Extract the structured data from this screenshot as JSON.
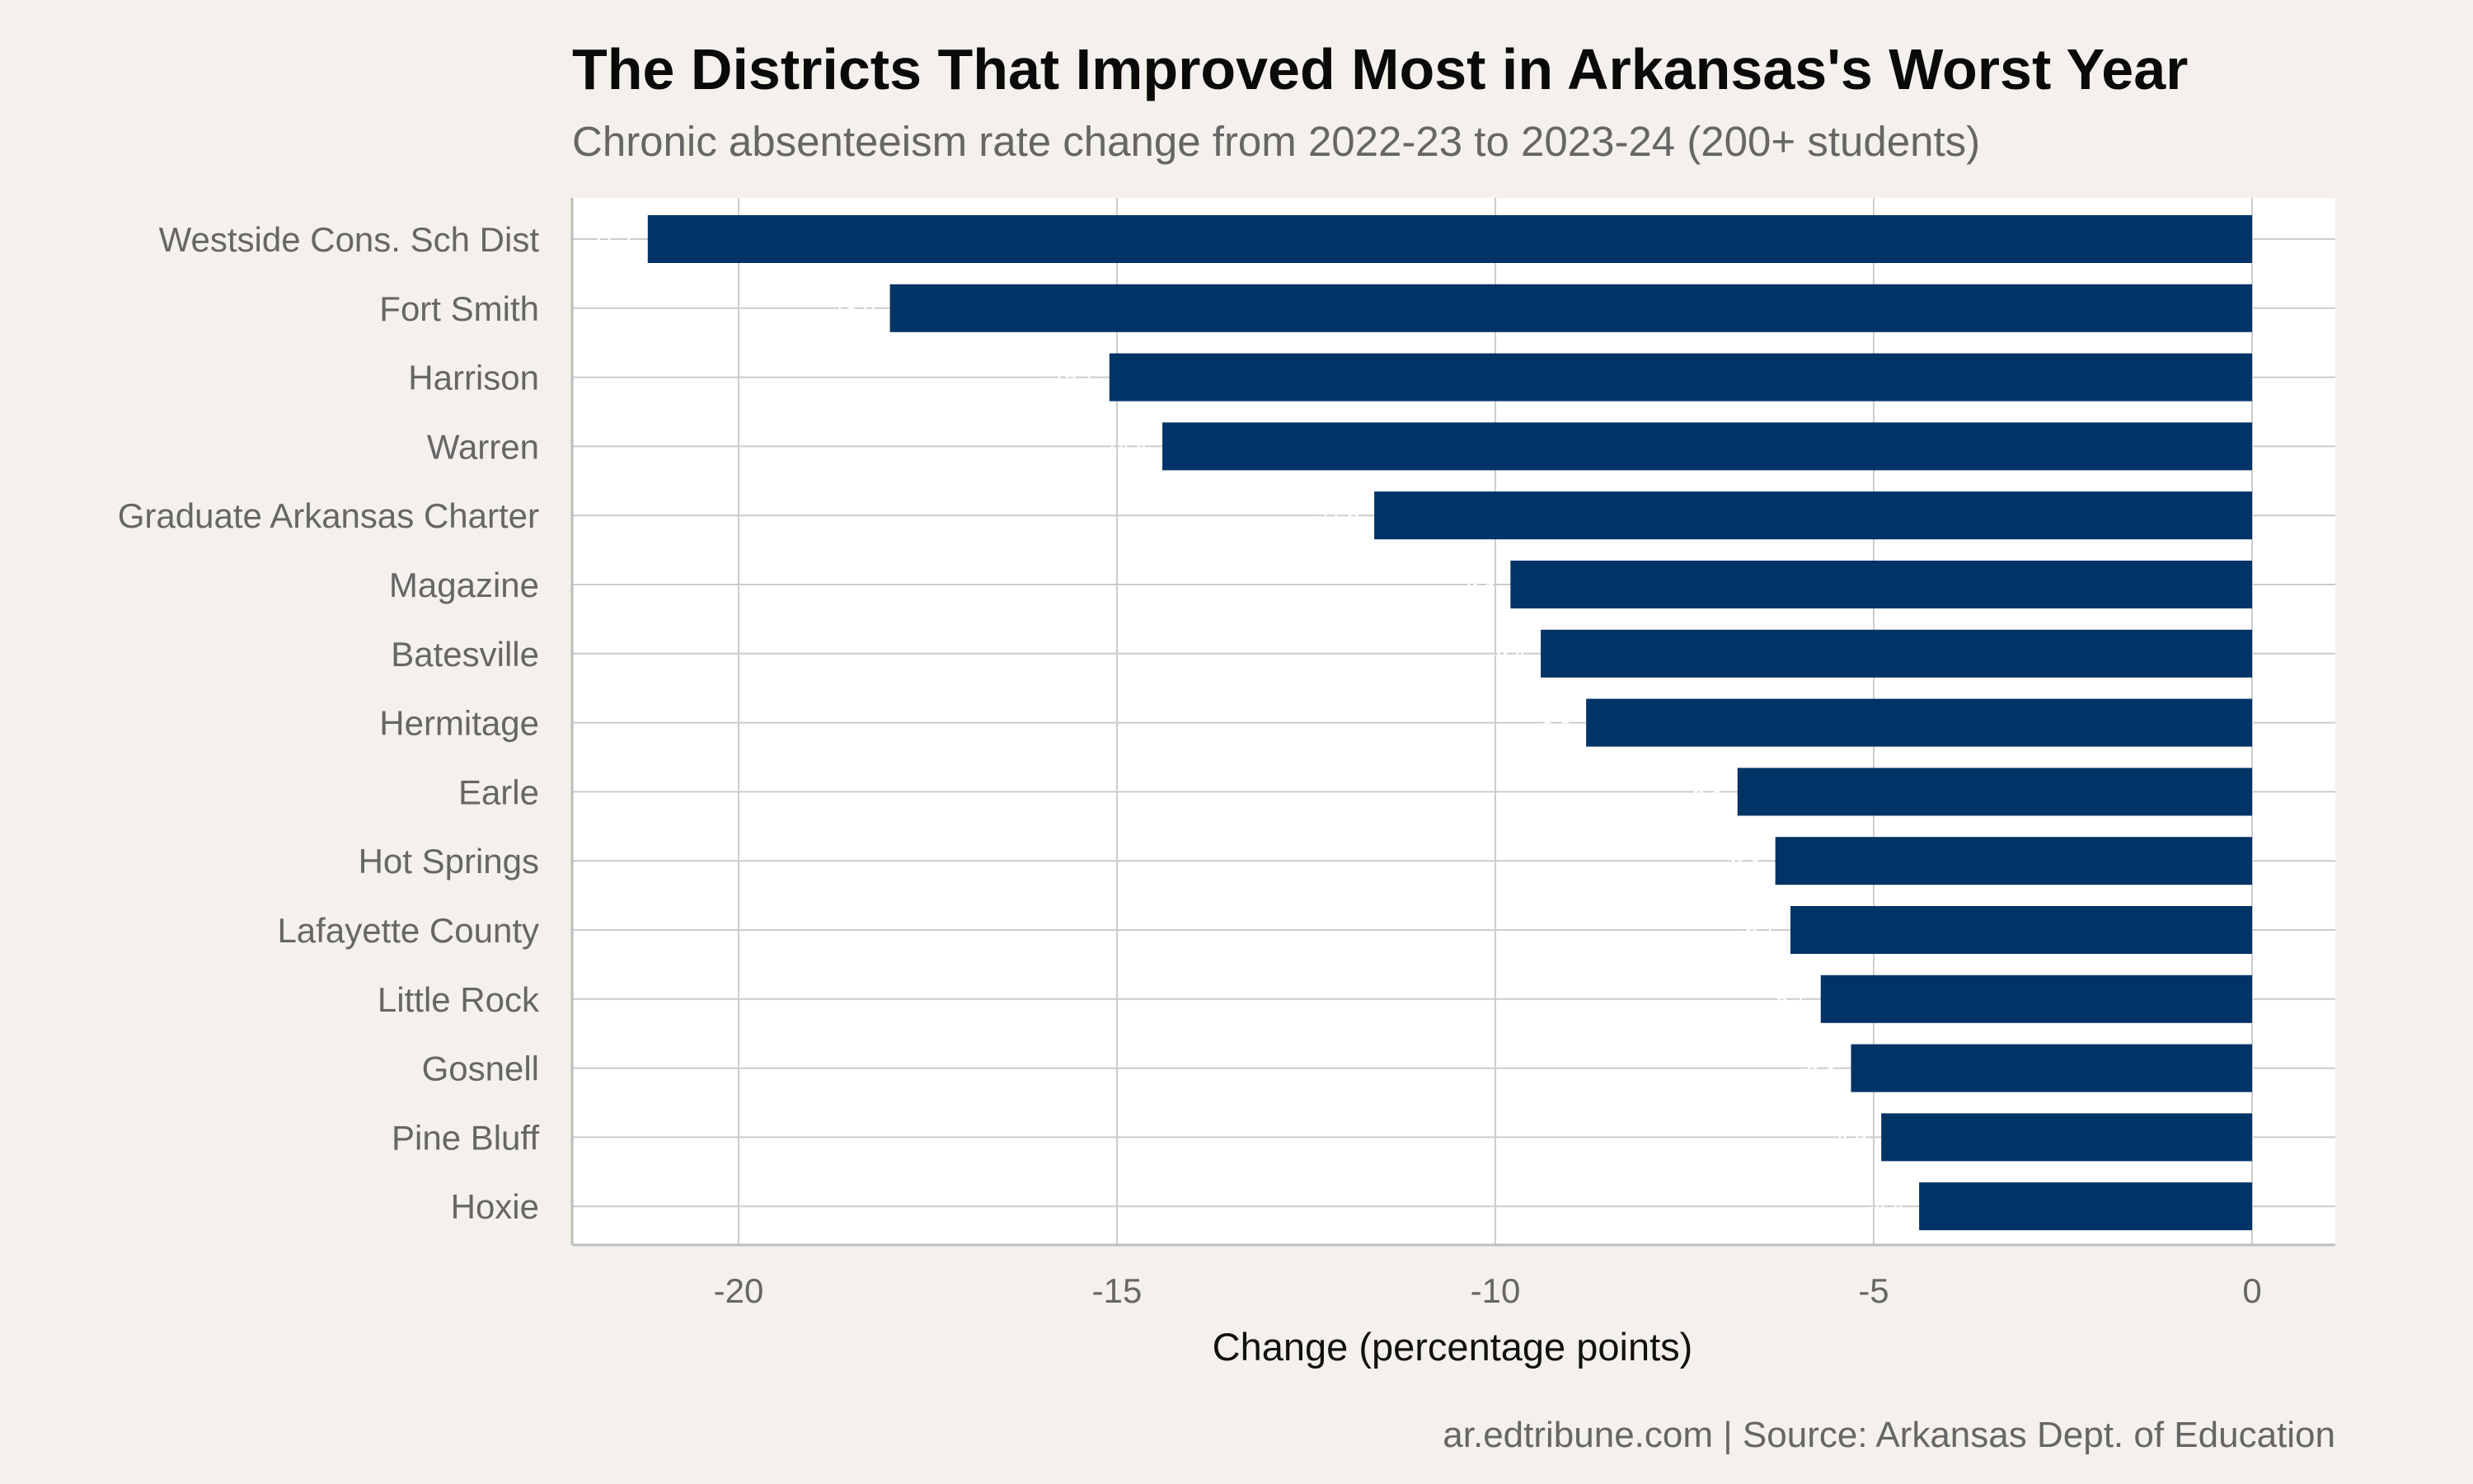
{
  "chart_data": {
    "type": "bar",
    "orientation": "horizontal",
    "title": "The Districts That Improved Most in Arkansas's Worst Year",
    "subtitle": "Chronic absenteeism rate change from 2022-23 to 2023-24 (200+ students)",
    "caption": "ar.edtribune.com | Source: Arkansas Dept. of Education",
    "xlabel": "Change (percentage points)",
    "ylabel": "",
    "xlim": [
      -22.2,
      1.1
    ],
    "xticks": [
      -20,
      -15,
      -10,
      -5,
      0
    ],
    "xtick_labels": [
      "-20",
      "-15",
      "-10",
      "-5",
      "0"
    ],
    "grid": true,
    "bar_color": "#003366",
    "panel_color": "#ffffff",
    "background_color": "#f4f1ec",
    "categories": [
      "Westside Cons. Sch Dist",
      "Fort Smith",
      "Harrison",
      "Warren",
      "Graduate Arkansas Charter",
      "Magazine",
      "Batesville",
      "Hermitage",
      "Earle",
      "Hot Springs",
      "Lafayette County",
      "Little Rock",
      "Gosnell",
      "Pine Bluff",
      "Hoxie"
    ],
    "values": [
      -21.2,
      -18.0,
      -15.1,
      -14.4,
      -11.6,
      -9.8,
      -9.4,
      -8.8,
      -6.8,
      -6.3,
      -6.1,
      -5.7,
      -5.3,
      -4.9,
      -4.4
    ],
    "data_labels": [
      "-21.2",
      "-18.0",
      "-15.1",
      "-14.4",
      "-11.6",
      "-9.8",
      "-9.4",
      "-8.8",
      "-6.8",
      "-6.3",
      "-6.1",
      "-5.7",
      "-5.3",
      "-4.9",
      "-4.4"
    ]
  }
}
